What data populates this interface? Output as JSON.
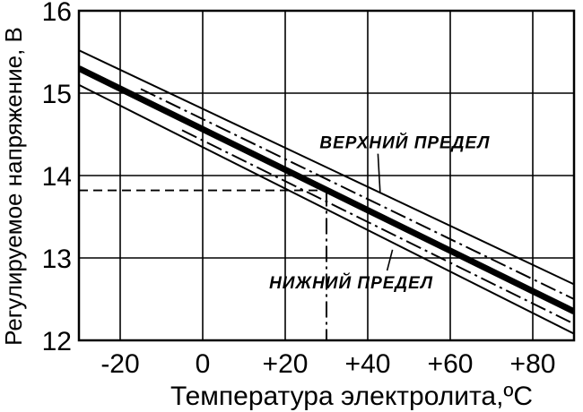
{
  "chart_data": {
    "type": "line",
    "title": "",
    "xlabel": "Температура электролита,ºC",
    "ylabel": "Регулируемое напряжение, В",
    "xlim": [
      -30,
      90
    ],
    "ylim": [
      12,
      16
    ],
    "x_ticks": [
      -20,
      0,
      20,
      40,
      60,
      80
    ],
    "x_tick_labels": [
      "-20",
      "0",
      "+20",
      "+40",
      "+60",
      "+80"
    ],
    "y_ticks": [
      12,
      13,
      14,
      15,
      16
    ],
    "y_tick_labels": [
      "12",
      "13",
      "14",
      "15",
      "16"
    ],
    "grid": true,
    "series": [
      {
        "x": [
          -30,
          90
        ],
        "y": [
          15.3,
          12.35
        ],
        "style": "thick-solid"
      },
      {
        "x": [
          -30,
          90
        ],
        "y": [
          15.52,
          12.68
        ],
        "style": "thin-solid"
      },
      {
        "x": [
          -30,
          90
        ],
        "y": [
          15.1,
          12.08
        ],
        "style": "thin-solid"
      },
      {
        "x": [
          -15,
          90
        ],
        "y": [
          15.05,
          12.5
        ],
        "style": "dash-dot"
      },
      {
        "x": [
          -5,
          90
        ],
        "y": [
          14.55,
          12.2
        ],
        "style": "dash-dot"
      }
    ],
    "reference_lines": [
      {
        "from": [
          -30,
          13.82
        ],
        "to": [
          30,
          13.82
        ],
        "style": "dashed"
      },
      {
        "from": [
          30,
          13.82
        ],
        "to": [
          30,
          12
        ],
        "style": "dash-dot"
      }
    ],
    "annotations": [
      {
        "text": "ВЕРХНИЙ ПРЕДЕЛ",
        "x": 49,
        "y": 14.33,
        "pointer_to": [
          43,
          13.8
        ]
      },
      {
        "text": "НИЖНИЙ ПРЕДЕЛ",
        "x": 36,
        "y": 12.63,
        "pointer_to": [
          46,
          13.1
        ]
      }
    ]
  }
}
